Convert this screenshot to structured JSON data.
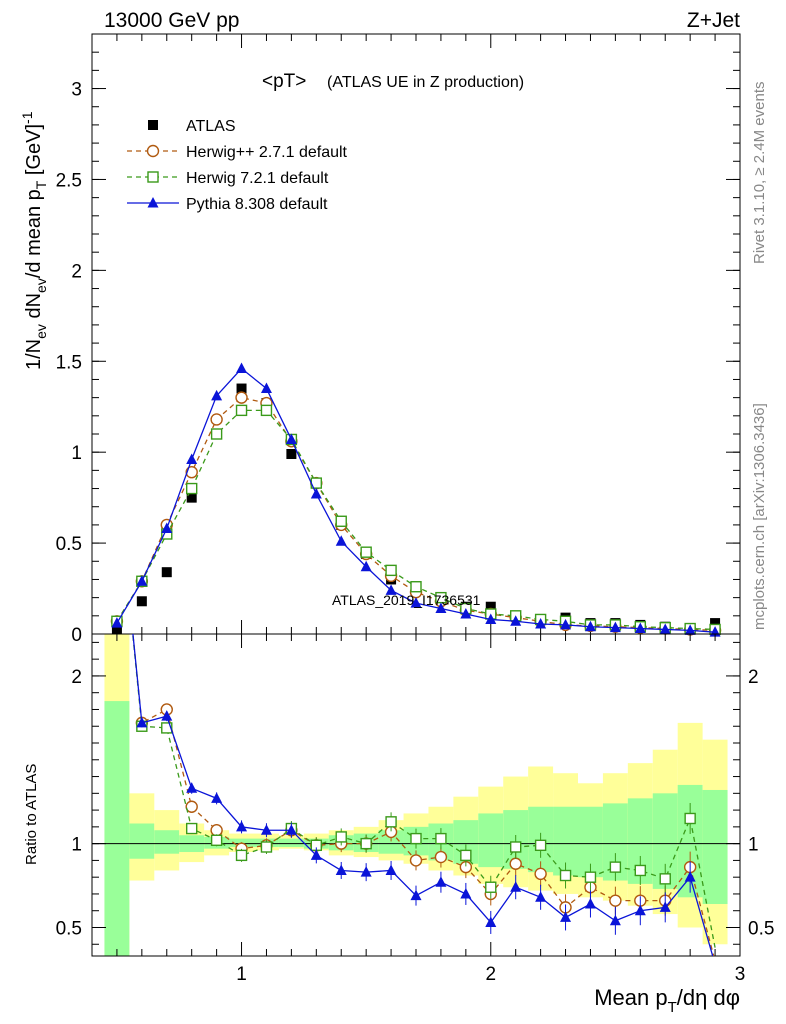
{
  "header": {
    "left": "13000 GeV pp",
    "right": "Z+Jet"
  },
  "side_text": {
    "rivet": "Rivet 3.1.10, ≥ 2.4M events",
    "mcplots": "mcplots.cern.ch [arXiv:1306.3436]"
  },
  "watermark": "ATLAS_2019_I1736531",
  "chart_data": [
    {
      "type": "line",
      "panel": "main",
      "title": "<pT>",
      "subtitle": "(ATLAS UE in Z production)",
      "xlabel": "Mean p_T/dη dφ",
      "ylabel": "1/N_ev dN_ev/d mean p_T [GeV]^-1",
      "xlim": [
        0.4,
        3.0
      ],
      "ylim": [
        0,
        3.3
      ],
      "y_ticks": [
        "0",
        "0.5",
        "1",
        "1.5",
        "2",
        "2.5",
        "3"
      ],
      "legend_position": "top-left",
      "x": [
        0.5,
        0.6,
        0.7,
        0.8,
        0.9,
        1.0,
        1.1,
        1.2,
        1.3,
        1.4,
        1.5,
        1.6,
        1.7,
        1.8,
        1.9,
        2.0,
        2.1,
        2.2,
        2.3,
        2.4,
        2.5,
        2.6,
        2.7,
        2.8,
        2.9
      ],
      "series": [
        {
          "name": "ATLAS",
          "color": "#000000",
          "marker": "square-filled",
          "values": [
            0.02,
            0.18,
            0.34,
            0.75,
            1.1,
            1.35,
            1.27,
            0.99,
            0.83,
            0.6,
            0.44,
            0.3,
            0.25,
            0.2,
            0.15,
            0.15,
            0.1,
            0.08,
            0.09,
            0.06,
            0.06,
            0.05,
            0.04,
            0.03,
            0.06
          ]
        },
        {
          "name": "Herwig++ 2.7.1 default",
          "color": "#b05a10",
          "marker": "circle-open",
          "values": [
            0.07,
            0.29,
            0.6,
            0.89,
            1.18,
            1.3,
            1.27,
            1.06,
            0.83,
            0.6,
            0.44,
            0.32,
            0.23,
            0.18,
            0.13,
            0.11,
            0.09,
            0.07,
            0.05,
            0.045,
            0.04,
            0.035,
            0.03,
            0.025,
            0.02
          ]
        },
        {
          "name": "Herwig 7.2.1 default",
          "color": "#3a9a1a",
          "marker": "square-open",
          "values": [
            0.07,
            0.29,
            0.55,
            0.8,
            1.1,
            1.23,
            1.23,
            1.07,
            0.83,
            0.62,
            0.45,
            0.35,
            0.26,
            0.2,
            0.14,
            0.11,
            0.1,
            0.08,
            0.07,
            0.05,
            0.05,
            0.04,
            0.035,
            0.03,
            0.025
          ]
        },
        {
          "name": "Pythia 8.308 default",
          "color": "#0a14d8",
          "marker": "triangle-filled",
          "values": [
            0.06,
            0.29,
            0.58,
            0.96,
            1.31,
            1.46,
            1.35,
            1.07,
            0.77,
            0.51,
            0.37,
            0.24,
            0.17,
            0.14,
            0.11,
            0.08,
            0.07,
            0.055,
            0.05,
            0.04,
            0.035,
            0.03,
            0.025,
            0.02,
            0.01
          ]
        }
      ]
    },
    {
      "type": "line",
      "panel": "ratio",
      "ylabel": "Ratio to ATLAS",
      "xlabel": "Mean p_T/dη dφ",
      "xlim": [
        0.4,
        3.0
      ],
      "ylim": [
        0.33,
        2.25
      ],
      "x_ticks": [
        "1",
        "2",
        "3"
      ],
      "y_ticks": [
        "0.5",
        "1",
        "2"
      ],
      "bins": [
        0.45,
        0.55,
        0.65,
        0.75,
        0.85,
        0.95,
        1.05,
        1.15,
        1.25,
        1.35,
        1.45,
        1.55,
        1.65,
        1.75,
        1.85,
        1.95,
        2.05,
        2.15,
        2.25,
        2.35,
        2.45,
        2.55,
        2.65,
        2.75,
        2.85,
        2.95
      ],
      "band_yellow": {
        "low": [
          0.1,
          0.78,
          0.84,
          0.89,
          0.93,
          0.95,
          0.96,
          0.97,
          0.96,
          0.93,
          0.92,
          0.9,
          0.88,
          0.84,
          0.81,
          0.76,
          0.74,
          0.72,
          0.7,
          0.68,
          0.66,
          0.63,
          0.58,
          0.5,
          0.4
        ],
        "high": [
          2.3,
          1.3,
          1.2,
          1.12,
          1.08,
          1.06,
          1.06,
          1.05,
          1.06,
          1.08,
          1.1,
          1.14,
          1.18,
          1.22,
          1.28,
          1.34,
          1.4,
          1.46,
          1.42,
          1.36,
          1.42,
          1.48,
          1.56,
          1.72,
          1.62
        ]
      },
      "band_green": {
        "low": [
          0.25,
          0.91,
          0.94,
          0.95,
          0.97,
          0.98,
          0.98,
          0.98,
          0.97,
          0.96,
          0.95,
          0.94,
          0.93,
          0.9,
          0.88,
          0.86,
          0.85,
          0.83,
          0.81,
          0.8,
          0.78,
          0.76,
          0.73,
          0.68,
          0.64
        ]
      },
      "band_green_high": [
        1.85,
        1.12,
        1.08,
        1.05,
        1.04,
        1.03,
        1.03,
        1.03,
        1.03,
        1.05,
        1.06,
        1.08,
        1.1,
        1.12,
        1.14,
        1.18,
        1.2,
        1.22,
        1.22,
        1.22,
        1.24,
        1.27,
        1.3,
        1.35,
        1.32
      ],
      "x": [
        0.5,
        0.6,
        0.7,
        0.8,
        0.9,
        1.0,
        1.1,
        1.2,
        1.3,
        1.4,
        1.5,
        1.6,
        1.7,
        1.8,
        1.9,
        2.0,
        2.1,
        2.2,
        2.3,
        2.4,
        2.5,
        2.6,
        2.7,
        2.8,
        2.9
      ],
      "series": [
        {
          "name": "Herwig++ 2.7.1 default",
          "color": "#b05a10",
          "marker": "circle-open",
          "values": [
            3.2,
            1.72,
            1.8,
            1.22,
            1.08,
            0.97,
            0.99,
            1.08,
            0.99,
            1.0,
            1.0,
            1.07,
            0.9,
            0.92,
            0.86,
            0.7,
            0.88,
            0.82,
            0.62,
            0.74,
            0.66,
            0.66,
            0.66,
            0.86,
            0.3
          ]
        },
        {
          "name": "Herwig 7.2.1 default",
          "color": "#3a9a1a",
          "marker": "square-open",
          "values": [
            3.2,
            1.7,
            1.69,
            1.09,
            1.02,
            0.93,
            0.98,
            1.09,
            0.99,
            1.04,
            1.0,
            1.13,
            1.03,
            1.03,
            0.93,
            0.74,
            0.98,
            0.99,
            0.81,
            0.8,
            0.86,
            0.84,
            0.79,
            1.15,
            0.38
          ]
        },
        {
          "name": "Pythia 8.308 default",
          "color": "#0a14d8",
          "marker": "triangle-filled",
          "values": [
            3.2,
            1.72,
            1.76,
            1.33,
            1.27,
            1.1,
            1.08,
            1.08,
            0.93,
            0.84,
            0.83,
            0.84,
            0.69,
            0.77,
            0.7,
            0.53,
            0.74,
            0.68,
            0.56,
            0.64,
            0.54,
            0.6,
            0.62,
            0.8,
            0.28
          ]
        }
      ]
    }
  ]
}
